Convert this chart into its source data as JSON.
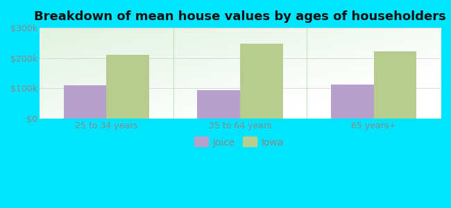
{
  "title": "Breakdown of mean house values by ages of householders",
  "categories": [
    "25 to 34 years",
    "35 to 64 years",
    "65 years+"
  ],
  "joice_values": [
    110000,
    95000,
    113000
  ],
  "iowa_values": [
    210000,
    248000,
    222000
  ],
  "ylim": [
    0,
    300000
  ],
  "yticks": [
    0,
    100000,
    200000,
    300000
  ],
  "ytick_labels": [
    "$0",
    "$100k",
    "$200k",
    "$300k"
  ],
  "bar_color_joice": "#b8a0cc",
  "bar_color_iowa": "#b8cc90",
  "background_outer": "#00e5ff",
  "legend_labels": [
    "Joice",
    "Iowa"
  ],
  "title_fontsize": 13,
  "tick_fontsize": 9,
  "legend_fontsize": 10,
  "bar_width": 0.32,
  "grid_color": "#cccccc",
  "axis_label_color": "#888888",
  "divider_color": "#aaddaa"
}
